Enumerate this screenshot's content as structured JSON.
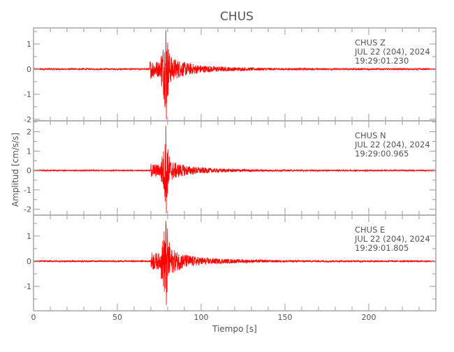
{
  "chart_data": {
    "type": "line",
    "title": "CHUS",
    "xlabel": "Tiempo [s]",
    "ylabel": "Amplitud [cm/s/s]",
    "xlim": [
      0,
      240
    ],
    "xticks": [
      0,
      50,
      100,
      150,
      200
    ],
    "line_color": "#ff0000",
    "axis_color": "#999999",
    "grid": false,
    "panels": [
      {
        "station": "CHUS",
        "component": "Z",
        "date": "JUL 22 (204), 2024",
        "time": "19:29:01.230",
        "ylim": [
          -2.06,
          1.64
        ],
        "yticks": [
          -2,
          -1,
          0,
          1
        ],
        "onset_s": 69.5,
        "peak_s": 79,
        "peak_max": 1.55,
        "peak_min": -2.0,
        "noise": 0.03
      },
      {
        "station": "CHUS",
        "component": "N",
        "date": "JUL 22 (204), 2024",
        "time": "19:29:00.965",
        "ylim": [
          -2.3,
          2.56
        ],
        "yticks": [
          -2,
          -1,
          0,
          1,
          2
        ],
        "onset_s": 70,
        "peak_s": 79,
        "peak_max": 2.3,
        "peak_min": -2.2,
        "noise": 0.03
      },
      {
        "station": "CHUS",
        "component": "E",
        "date": "JUL 22 (204), 2024",
        "time": "19:29:01.805",
        "ylim": [
          -1.97,
          1.83
        ],
        "yticks": [
          -1,
          0,
          1
        ],
        "onset_s": 70,
        "peak_s": 79,
        "peak_max": 1.6,
        "peak_min": -1.75,
        "noise": 0.03
      }
    ]
  }
}
